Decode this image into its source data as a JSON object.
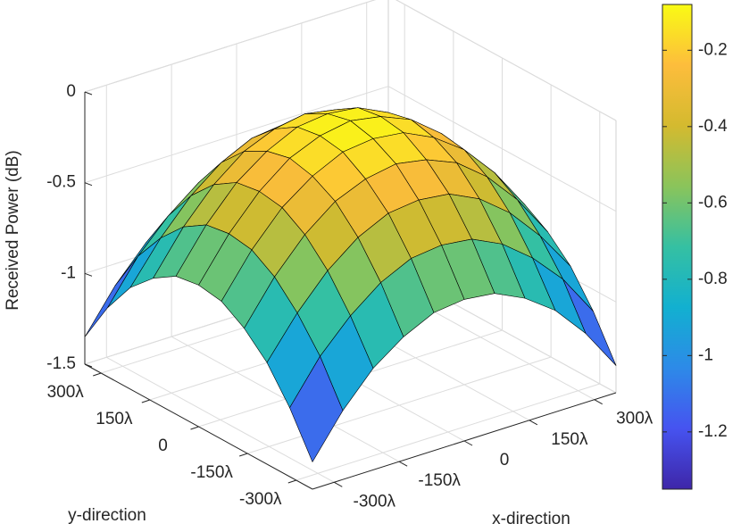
{
  "chart_data": {
    "type": "surface",
    "xlabel": "x-direction",
    "ylabel": "y-direction",
    "zlabel": "Received Power (dB)",
    "x": [
      -350,
      -280,
      -210,
      -140,
      -70,
      0,
      70,
      140,
      210,
      280,
      350
    ],
    "y": [
      -350,
      -280,
      -210,
      -140,
      -70,
      0,
      70,
      140,
      210,
      280,
      350
    ],
    "z": [
      [
        -1.35,
        -1.12,
        -0.94,
        -0.82,
        -0.74,
        -0.72,
        -0.74,
        -0.82,
        -0.94,
        -1.12,
        -1.35
      ],
      [
        -1.12,
        -0.89,
        -0.72,
        -0.59,
        -0.51,
        -0.49,
        -0.51,
        -0.59,
        -0.72,
        -0.89,
        -1.12
      ],
      [
        -0.94,
        -0.72,
        -0.54,
        -0.41,
        -0.33,
        -0.31,
        -0.33,
        -0.41,
        -0.54,
        -0.72,
        -0.94
      ],
      [
        -0.82,
        -0.59,
        -0.41,
        -0.28,
        -0.21,
        -0.18,
        -0.21,
        -0.28,
        -0.41,
        -0.59,
        -0.82
      ],
      [
        -0.74,
        -0.51,
        -0.33,
        -0.21,
        -0.13,
        -0.11,
        -0.13,
        -0.21,
        -0.33,
        -0.51,
        -0.74
      ],
      [
        -0.72,
        -0.49,
        -0.31,
        -0.18,
        -0.11,
        -0.08,
        -0.11,
        -0.18,
        -0.31,
        -0.49,
        -0.72
      ],
      [
        -0.74,
        -0.51,
        -0.33,
        -0.21,
        -0.13,
        -0.11,
        -0.13,
        -0.21,
        -0.33,
        -0.51,
        -0.74
      ],
      [
        -0.82,
        -0.59,
        -0.41,
        -0.28,
        -0.21,
        -0.18,
        -0.21,
        -0.28,
        -0.41,
        -0.59,
        -0.82
      ],
      [
        -0.94,
        -0.72,
        -0.54,
        -0.41,
        -0.33,
        -0.31,
        -0.33,
        -0.41,
        -0.54,
        -0.72,
        -0.94
      ],
      [
        -1.12,
        -0.89,
        -0.72,
        -0.59,
        -0.51,
        -0.49,
        -0.51,
        -0.59,
        -0.72,
        -0.89,
        -1.12
      ],
      [
        -1.35,
        -1.12,
        -0.94,
        -0.82,
        -0.74,
        -0.72,
        -0.74,
        -0.82,
        -0.94,
        -1.12,
        -1.35
      ]
    ],
    "xlim": [
      -350,
      350
    ],
    "ylim": [
      -350,
      350
    ],
    "zlim": [
      -1.5,
      0
    ],
    "xticks": [
      {
        "value": -300,
        "label": "-300λ"
      },
      {
        "value": -150,
        "label": "-150λ"
      },
      0,
      {
        "value": 150,
        "label": "150λ"
      },
      {
        "value": 300,
        "label": "300λ"
      }
    ],
    "yticks": [
      {
        "value": -300,
        "label": "-300λ"
      },
      {
        "value": -150,
        "label": "-150λ"
      },
      0,
      {
        "value": 150,
        "label": "150λ"
      },
      {
        "value": 300,
        "label": "300λ"
      }
    ],
    "zticks": [
      -1.5,
      -1,
      -0.5,
      0
    ],
    "grid": true,
    "edge_color": "#000000",
    "colormap": [
      "#3e26a8",
      "#4653f0",
      "#2d8ae8",
      "#12b0d0",
      "#35c0a2",
      "#8ac45b",
      "#d4ba2f",
      "#fdbd3c",
      "#f9fb14"
    ],
    "colorbar": {
      "clim": [
        -1.35,
        -0.08
      ],
      "ticks": [
        -1.2,
        -1,
        -0.8,
        -0.6,
        -0.4,
        -0.2
      ]
    }
  }
}
